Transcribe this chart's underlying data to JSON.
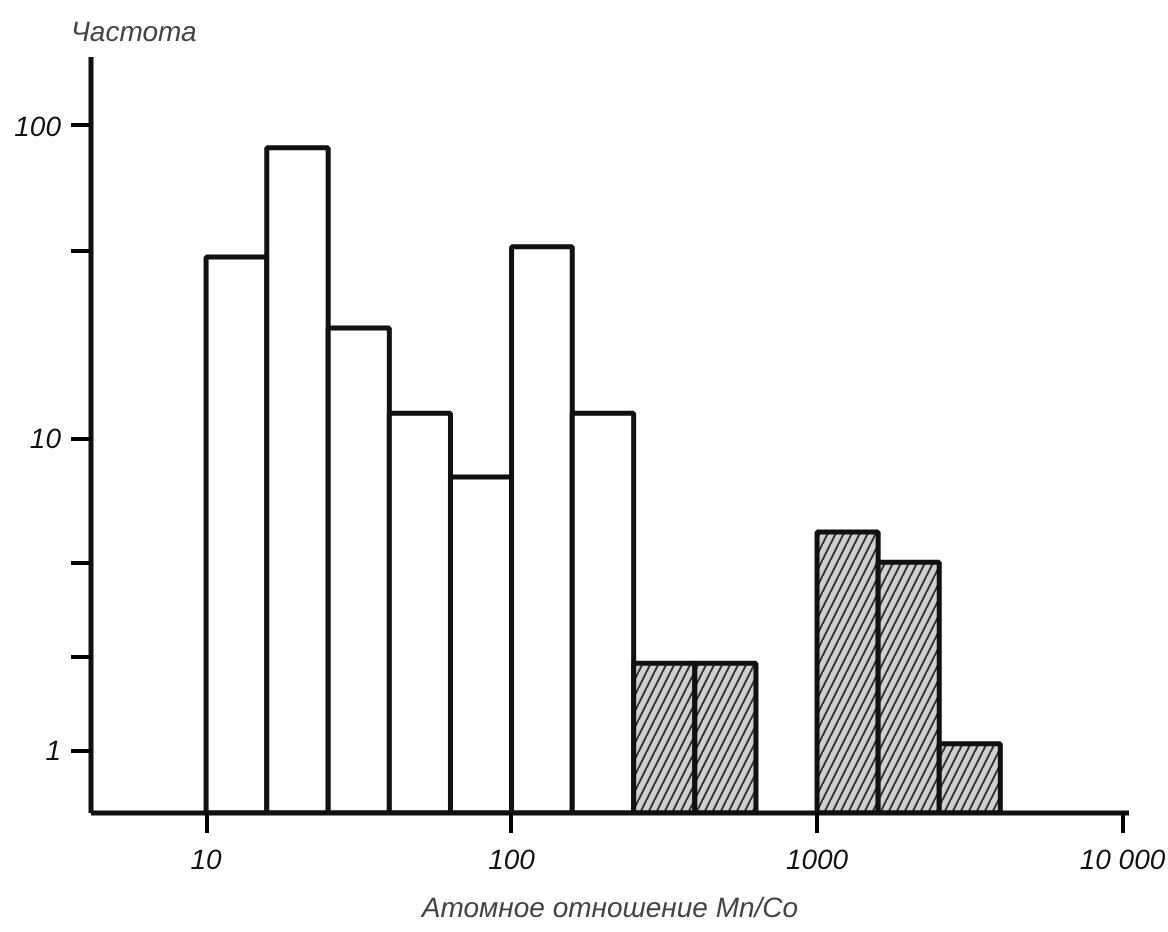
{
  "chart_data": {
    "type": "histogram",
    "xlabel": "Атомное отношение Mn/Co",
    "ylabel": "Частота",
    "bins": [
      10,
      15.8,
      25.1,
      39.8,
      63.1,
      100,
      158,
      251,
      398,
      631,
      1000,
      1585,
      2512,
      3981
    ],
    "values": [
      38,
      85,
      22.5,
      12,
      7.5,
      41,
      12,
      1.9,
      1.9,
      null,
      5.0,
      4.0,
      1.05
    ],
    "colors": [
      "#ffffff",
      "#ffffff",
      "#ffffff",
      "#ffffff",
      "#ffffff",
      "#ffffff",
      "#ffffff",
      "#d0d0d0",
      "#d0d0d0",
      "#ffffff",
      "#d0d0d0",
      "#d0d0d0",
      "#d0d0d0"
    ],
    "log": "xy",
    "grid": false,
    "xlim": [
      4.2,
      10500
    ],
    "xticks": [
      10,
      100,
      1000,
      {
        "value": 10000,
        "label": "10 000"
      }
    ],
    "ylim": [
      0.63,
      166
    ],
    "yticks": [
      1,
      {
        "value": 2,
        "label": null
      },
      {
        "value": 4,
        "label": null
      },
      10,
      {
        "value": 40,
        "label": null
      },
      100
    ]
  }
}
